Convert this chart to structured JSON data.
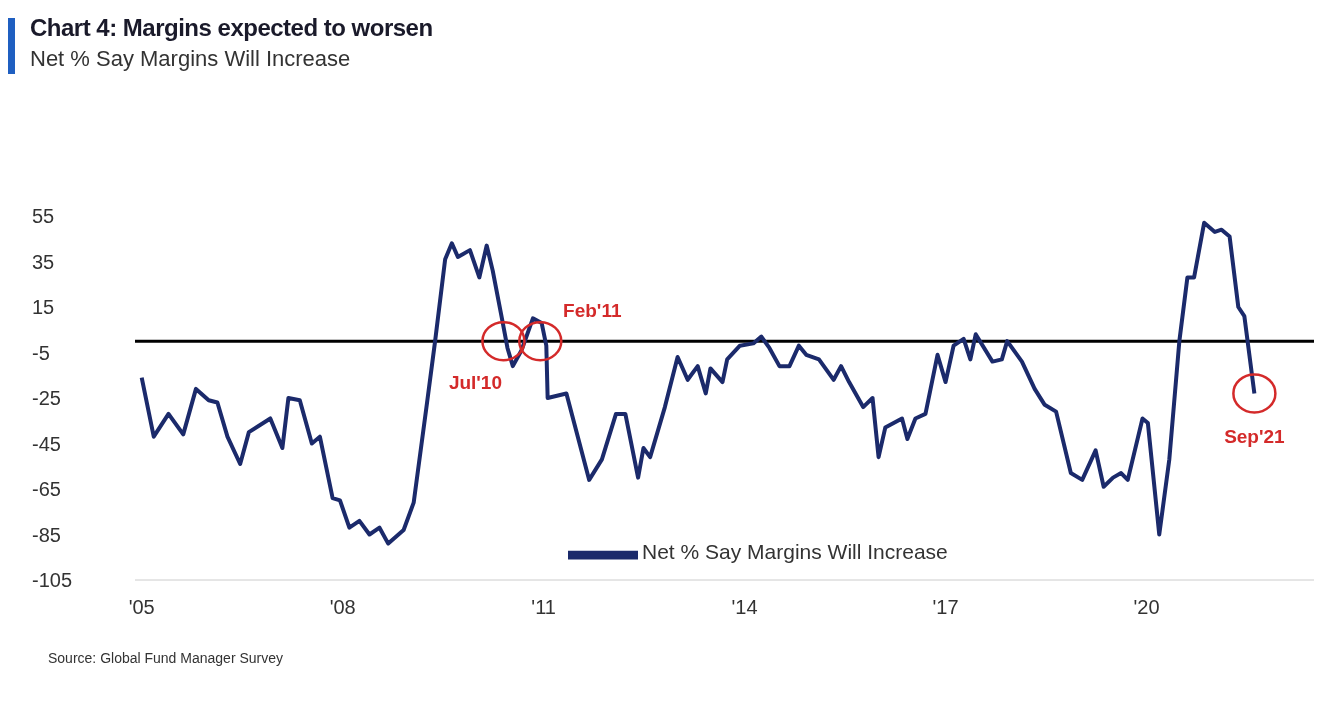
{
  "chart_data": {
    "type": "line",
    "title": "Chart 4: Margins expected to worsen",
    "subtitle": "Net % Say Margins Will Increase",
    "x": [
      2005.0,
      2005.18,
      2005.4,
      2005.62,
      2005.81,
      2006.0,
      2006.13,
      2006.28,
      2006.47,
      2006.6,
      2006.92,
      2007.1,
      2007.19,
      2007.36,
      2007.54,
      2007.66,
      2007.85,
      2007.96,
      2008.1,
      2008.25,
      2008.4,
      2008.55,
      2008.68,
      2008.91,
      2009.06,
      2009.26,
      2009.38,
      2009.53,
      2009.63,
      2009.72,
      2009.9,
      2010.04,
      2010.15,
      2010.24,
      2010.39,
      2010.46,
      2010.54,
      2010.67,
      2010.84,
      2010.97,
      2011.04,
      2011.06,
      2011.34,
      2011.68,
      2011.87,
      2012.08,
      2012.22,
      2012.41,
      2012.49,
      2012.59,
      2012.81,
      2013.0,
      2013.15,
      2013.3,
      2013.42,
      2013.49,
      2013.67,
      2013.74,
      2013.93,
      2014.13,
      2014.25,
      2014.37,
      2014.52,
      2014.67,
      2014.81,
      2014.92,
      2015.11,
      2015.33,
      2015.44,
      2015.56,
      2015.77,
      2015.91,
      2016.0,
      2016.1,
      2016.35,
      2016.43,
      2016.55,
      2016.7,
      2016.88,
      2017.0,
      2017.12,
      2017.27,
      2017.37,
      2017.45,
      2017.7,
      2017.84,
      2017.92,
      2018.14,
      2018.33,
      2018.48,
      2018.65,
      2018.87,
      2019.04,
      2019.24,
      2019.36,
      2019.5,
      2019.62,
      2019.72,
      2019.94,
      2020.02,
      2020.19,
      2020.34,
      2020.49,
      2020.61,
      2020.71,
      2020.86,
      2021.02,
      2021.12,
      2021.24,
      2021.37,
      2021.46,
      2021.61
    ],
    "series": [
      {
        "name": "Net % Say Margins Will Increase",
        "color": "#1b2a6b",
        "values": [
          -16,
          -42,
          -32,
          -41,
          -21,
          -26,
          -27,
          -42,
          -54,
          -40,
          -34,
          -47,
          -25,
          -26,
          -45,
          -42,
          -69,
          -70,
          -82,
          -79,
          -85,
          -82,
          -89,
          -83,
          -71,
          -27,
          0,
          36,
          43,
          37,
          40,
          28,
          42,
          31,
          8,
          -3,
          -11,
          -4,
          10,
          8,
          -2,
          -25,
          -23,
          -61,
          -52,
          -32,
          -32,
          -60,
          -47,
          -51,
          -29,
          -7,
          -17,
          -11,
          -23,
          -12,
          -18,
          -8,
          -2,
          -1,
          2,
          -3,
          -11,
          -11,
          -2,
          -6,
          -8,
          -17,
          -11,
          -18,
          -29,
          -25,
          -51,
          -38,
          -34,
          -43,
          -34,
          -32,
          -6,
          -18,
          -2,
          1,
          -8,
          3,
          -9,
          -8,
          0,
          -9,
          -21,
          -28,
          -31,
          -58,
          -61,
          -48,
          -64,
          -60,
          -58,
          -61,
          -34,
          -36,
          -85,
          -52,
          0,
          28,
          28,
          52,
          48,
          49,
          46,
          15,
          11,
          -23
        ]
      }
    ],
    "xlim": [
      2004.9,
      2022.5
    ],
    "xticks": [
      {
        "value": 2005,
        "label": "'05"
      },
      {
        "value": 2008,
        "label": "'08"
      },
      {
        "value": 2011,
        "label": "'11"
      },
      {
        "value": 2014,
        "label": "'14"
      },
      {
        "value": 2017,
        "label": "'17"
      },
      {
        "value": 2020,
        "label": "'20"
      }
    ],
    "ylim": [
      -105,
      55
    ],
    "yticks": [
      -105,
      -85,
      -65,
      -45,
      -25,
      -5,
      15,
      35,
      55
    ],
    "ref_lines": [
      {
        "axis": "y",
        "value": 0,
        "color": "#000000"
      }
    ],
    "annotations": [
      {
        "text": "Jul'10",
        "x": 2010.4,
        "y": 0
      },
      {
        "text": "Feb'11",
        "x": 2010.95,
        "y": 0
      },
      {
        "text": "Sep'21",
        "x": 2021.61,
        "y": -23
      },
      "Source: Global Fund Manager Survey"
    ],
    "legend": "bottom",
    "grid": false,
    "marker": "none",
    "line_style": "solid"
  }
}
